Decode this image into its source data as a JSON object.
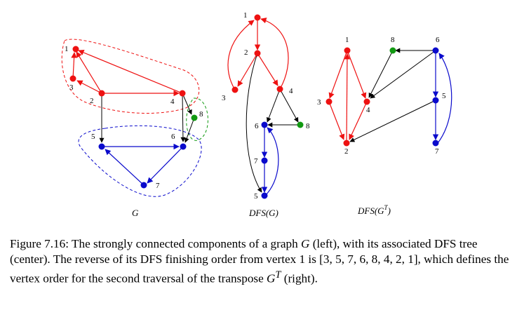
{
  "colors": {
    "red": "#ee1111",
    "green": "#119911",
    "blue": "#0a0acc",
    "black": "#000000"
  },
  "graphs": {
    "g": {
      "caption": "G",
      "nodes": [
        "1",
        "2",
        "3",
        "4",
        "5",
        "6",
        "7",
        "8"
      ]
    },
    "dfs": {
      "caption": "DFS(G)",
      "nodes": [
        "1",
        "2",
        "3",
        "4",
        "6",
        "8",
        "7",
        "5"
      ]
    },
    "dfst": {
      "caption": "DFS(G",
      "caption_sup": "T",
      "caption_end": ")",
      "nodes": [
        "1",
        "8",
        "6",
        "3",
        "4",
        "5",
        "2",
        "7"
      ]
    }
  },
  "caption": {
    "figure_label": "Figure 7.16:",
    "text_1": " The strongly connected components of a graph ",
    "g": "G",
    "text_2": " (left), with its associated DFS tree (center). The reverse of its DFS finishing order from vertex 1 is [3, 5, 7, 6, 8, 4, 2, 1], which defines the vertex order for the second traversal of the transpose ",
    "gt": "G",
    "gt_sup": "T",
    "text_3": " (right)."
  }
}
